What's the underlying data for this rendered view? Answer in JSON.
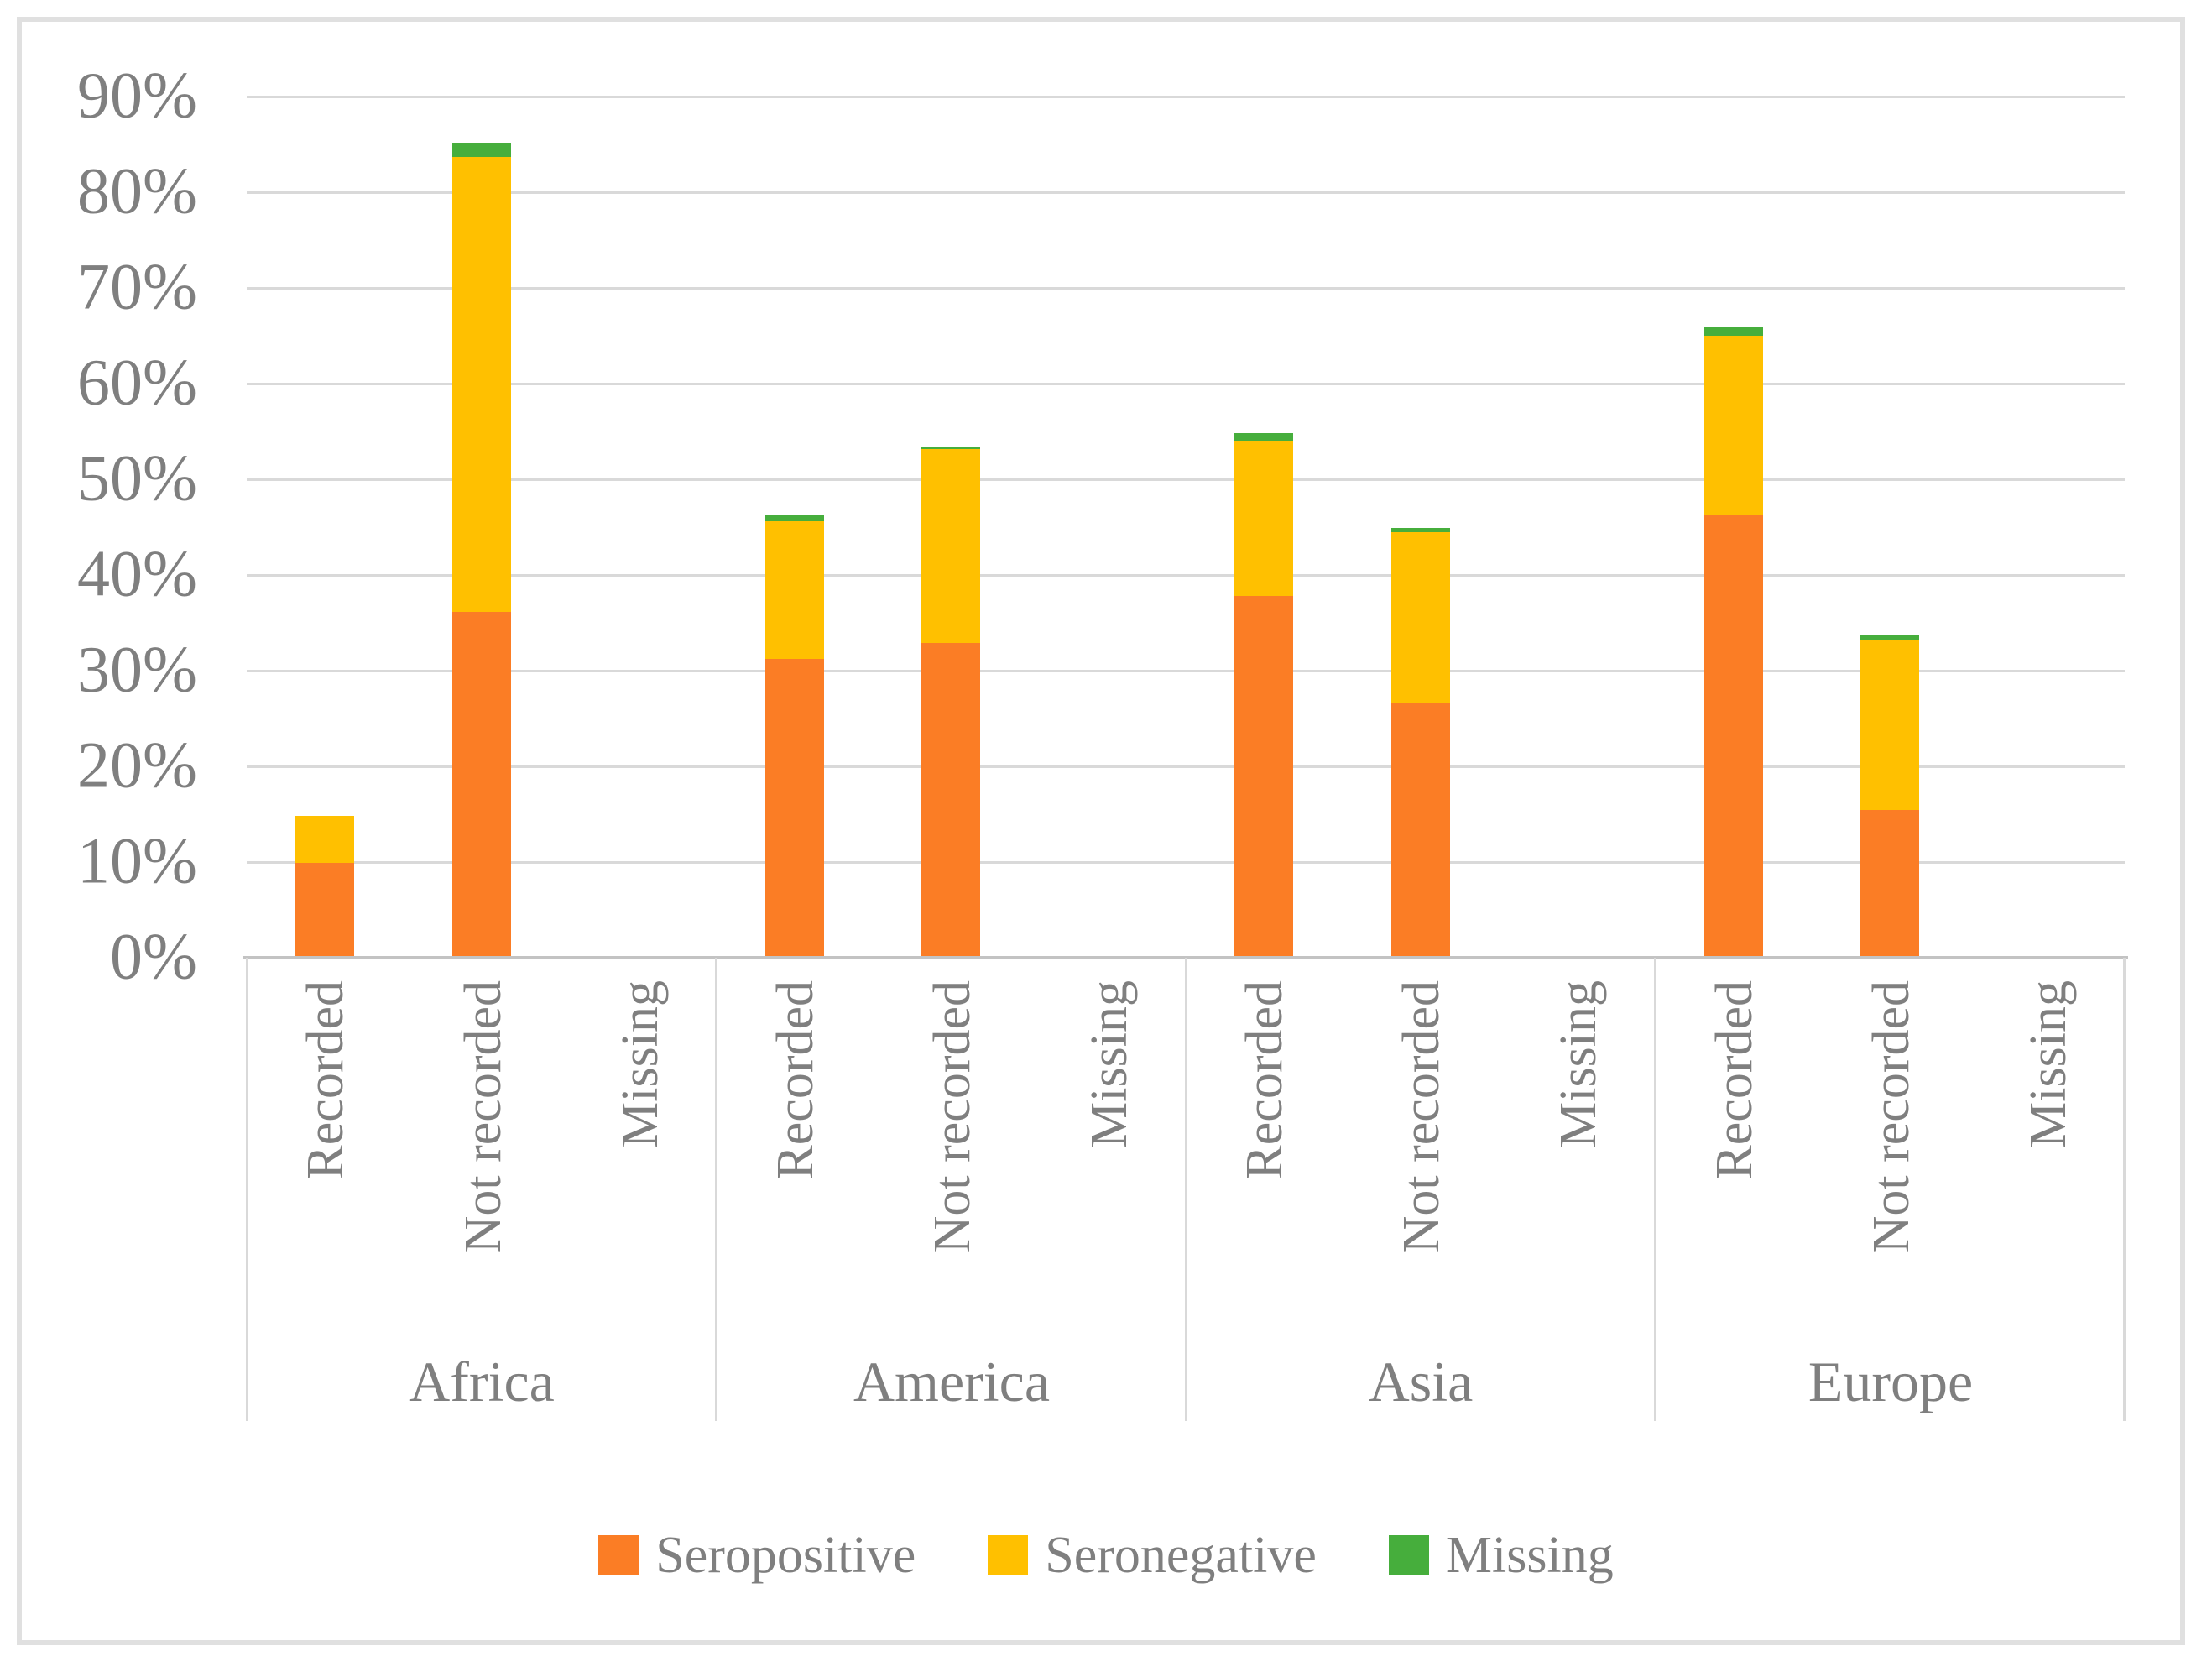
{
  "figure": {
    "background": "#FFFFFF",
    "border_color": "#E0E0E0"
  },
  "colors": {
    "seropositive": "#FB7D25",
    "seronegative": "#FFC000",
    "missing": "#46AE3C",
    "gridline": "#D9D9D9",
    "axis_line": "#C3C3C3",
    "text": "#7F7F7F"
  },
  "y_axis": {
    "ticks": [
      "90%",
      "80%",
      "70%",
      "60%",
      "50%",
      "40%",
      "30%",
      "20%",
      "10%",
      "0%"
    ],
    "tick_values": [
      90,
      80,
      70,
      60,
      50,
      40,
      30,
      20,
      10,
      0
    ],
    "min": 0,
    "max": 90,
    "grid": "on"
  },
  "chart_data": {
    "type": "bar",
    "stacked": true,
    "orientation": "vertical",
    "groups": [
      "Africa",
      "America",
      "Asia",
      "Europe"
    ],
    "categories": [
      "Recorded",
      "Not recorded",
      "Missing"
    ],
    "ylim": [
      0,
      90
    ],
    "legend_position": "bottom",
    "series": [
      {
        "name": "Seropositive",
        "color": "#FB7D25",
        "values": [
          [
            9.9,
            36.1,
            0
          ],
          [
            31.2,
            32.9,
            0
          ],
          [
            37.8,
            26.6,
            0
          ],
          [
            46.2,
            15.4,
            0
          ]
        ]
      },
      {
        "name": "Seronegative",
        "color": "#FFC000",
        "values": [
          [
            4.9,
            47.6,
            0
          ],
          [
            14.4,
            20.3,
            0
          ],
          [
            16.2,
            17.9,
            0
          ],
          [
            18.8,
            17.8,
            0
          ]
        ]
      },
      {
        "name": "Missing",
        "color": "#46AE3C",
        "values": [
          [
            0,
            1.5,
            0
          ],
          [
            0.6,
            0.3,
            0
          ],
          [
            0.8,
            0.4,
            0
          ],
          [
            1.0,
            0.5,
            0
          ]
        ]
      }
    ],
    "bar_totals_percent": {
      "Africa": {
        "Recorded": 14.8,
        "Not recorded": 85.2,
        "Missing": 0
      },
      "America": {
        "Recorded": 46.2,
        "Not recorded": 53.5,
        "Missing": 0
      },
      "Asia": {
        "Recorded": 54.8,
        "Not recorded": 44.9,
        "Missing": 0
      },
      "Europe": {
        "Recorded": 66.0,
        "Not recorded": 33.7,
        "Missing": 0
      }
    }
  },
  "legend": [
    {
      "label": "Seropositive",
      "color": "#FB7D25"
    },
    {
      "label": "Seronegative",
      "color": "#FFC000"
    },
    {
      "label": "Missing",
      "color": "#46AE3C"
    }
  ]
}
